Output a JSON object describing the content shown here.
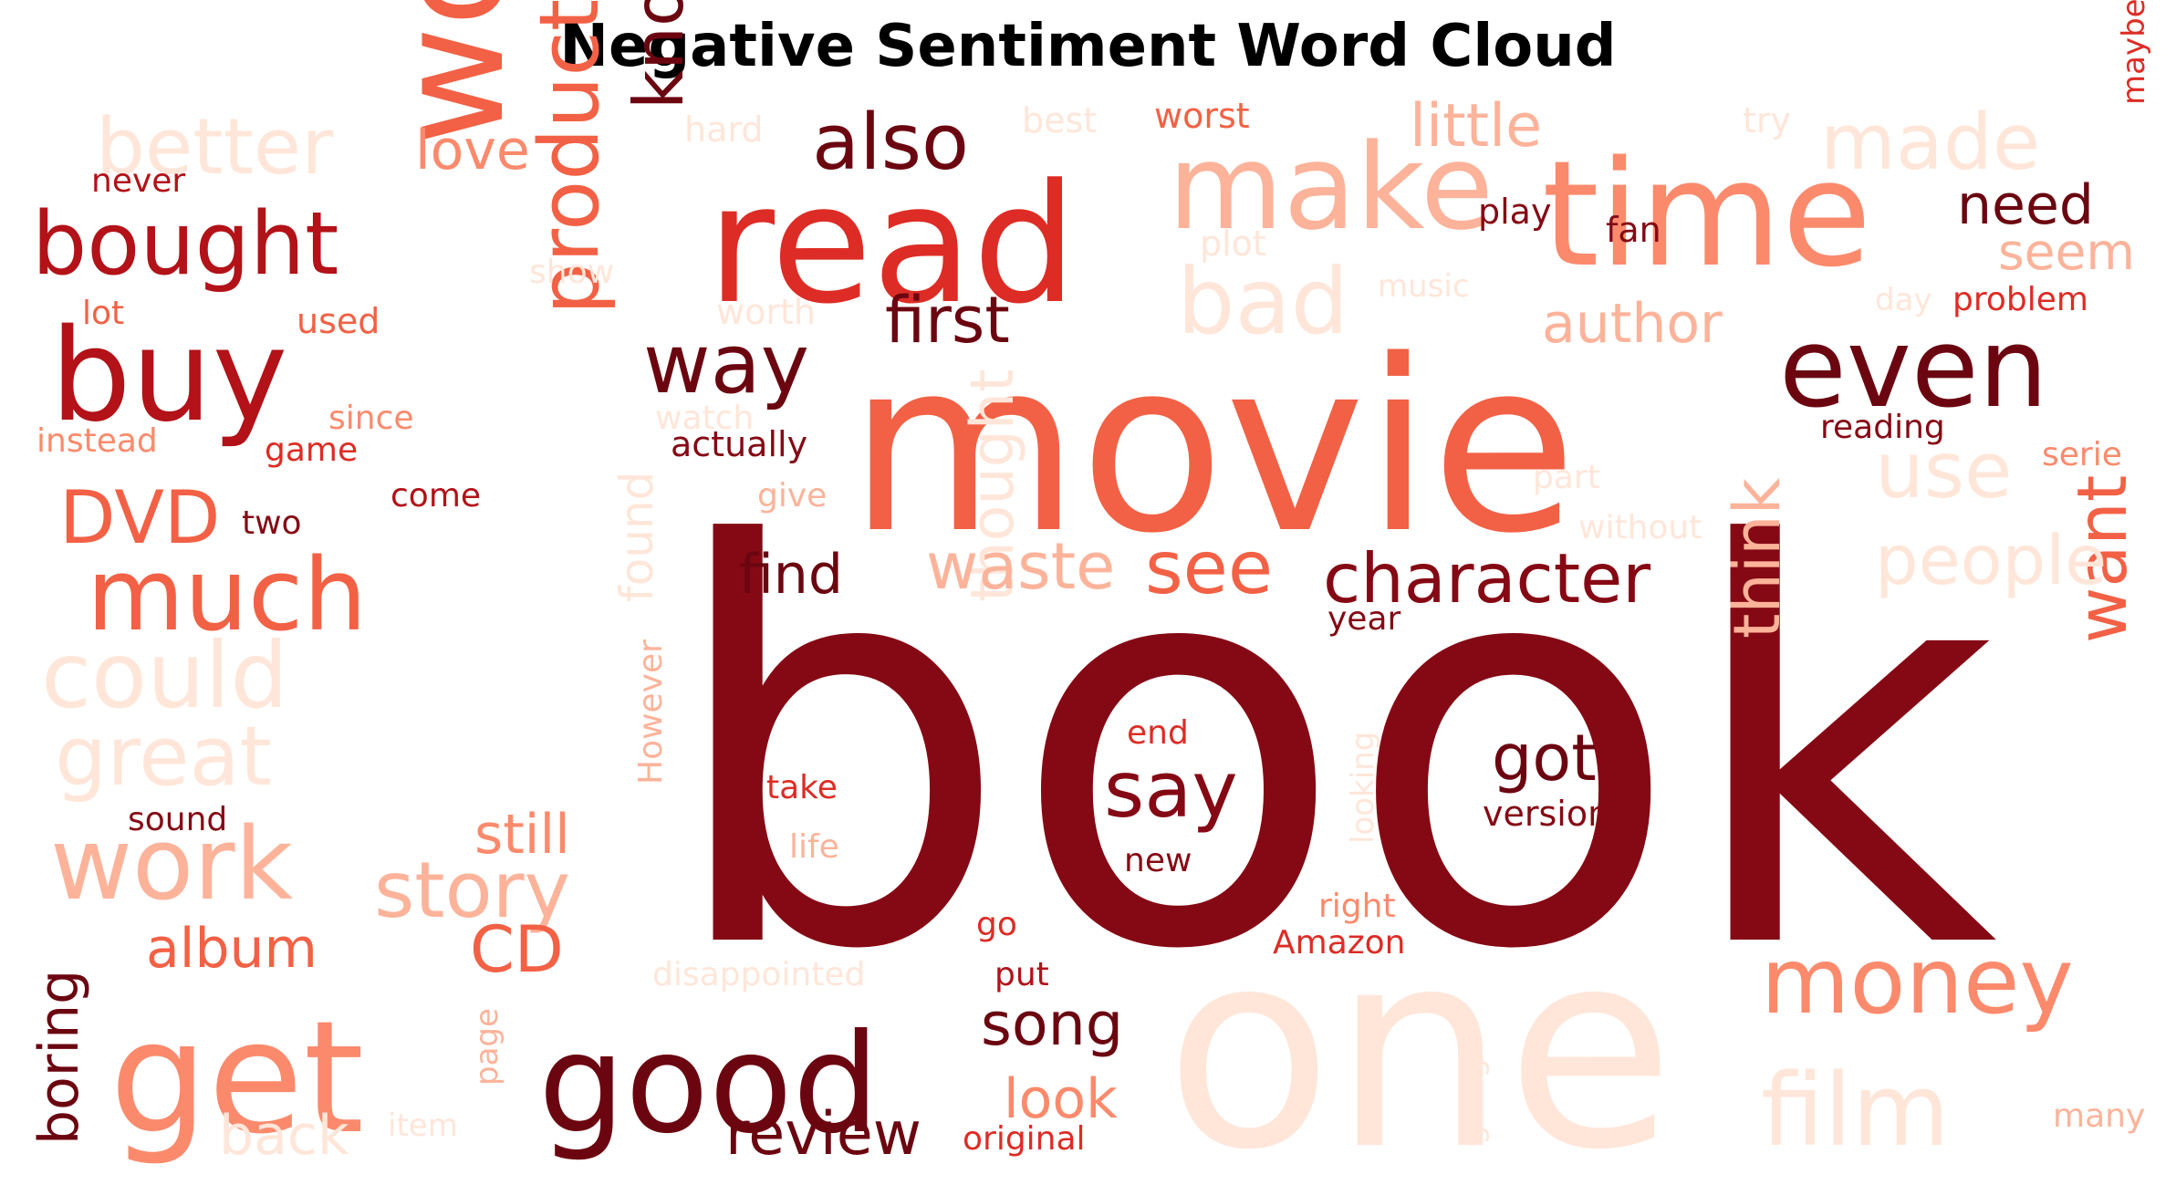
{
  "title": "Negative Sentiment Word Cloud",
  "palette": {
    "c0": "#FFE6D9",
    "c1": "#FCB39A",
    "c2": "#FB8A6C",
    "c3": "#F26145",
    "c4": "#DD2C25",
    "c5": "#B21218",
    "c6": "#850914",
    "c7": "#6B0610"
  },
  "words": [
    {
      "text": "book",
      "color": "c6"
    },
    {
      "text": "movie",
      "color": "c3"
    },
    {
      "text": "one",
      "color": "c0"
    },
    {
      "text": "would",
      "color": "c3"
    },
    {
      "text": "read",
      "color": "c4"
    },
    {
      "text": "time",
      "color": "c2"
    },
    {
      "text": "get",
      "color": "c2"
    },
    {
      "text": "good",
      "color": "c7"
    },
    {
      "text": "make",
      "color": "c1"
    },
    {
      "text": "buy",
      "color": "c5"
    },
    {
      "text": "even",
      "color": "c7"
    },
    {
      "text": "bad",
      "color": "c0"
    },
    {
      "text": "film",
      "color": "c0"
    },
    {
      "text": "money",
      "color": "c2"
    },
    {
      "text": "product",
      "color": "c3"
    },
    {
      "text": "much",
      "color": "c3"
    },
    {
      "text": "work",
      "color": "c1"
    },
    {
      "text": "could",
      "color": "c0"
    },
    {
      "text": "know",
      "color": "c7"
    },
    {
      "text": "bought",
      "color": "c5"
    },
    {
      "text": "also",
      "color": "c7"
    },
    {
      "text": "better",
      "color": "c0"
    },
    {
      "text": "made",
      "color": "c0"
    },
    {
      "text": "way",
      "color": "c7"
    },
    {
      "text": "great",
      "color": "c0"
    },
    {
      "text": "say",
      "color": "c6"
    },
    {
      "text": "see",
      "color": "c3"
    },
    {
      "text": "character",
      "color": "c6"
    },
    {
      "text": "think",
      "color": "c1"
    },
    {
      "text": "want",
      "color": "c3"
    },
    {
      "text": "story",
      "color": "c1"
    },
    {
      "text": "use",
      "color": "c0"
    },
    {
      "text": "people",
      "color": "c0"
    },
    {
      "text": "got",
      "color": "c7"
    },
    {
      "text": "thought",
      "color": "c0"
    },
    {
      "text": "waste",
      "color": "c1"
    },
    {
      "text": "DVD",
      "color": "c3"
    },
    {
      "text": "little",
      "color": "c1"
    },
    {
      "text": "first",
      "color": "c7"
    },
    {
      "text": "love",
      "color": "c2"
    },
    {
      "text": "CD",
      "color": "c3"
    },
    {
      "text": "review",
      "color": "c7"
    },
    {
      "text": "look",
      "color": "c2"
    },
    {
      "text": "song",
      "color": "c7"
    },
    {
      "text": "find",
      "color": "c7"
    },
    {
      "text": "author",
      "color": "c1"
    },
    {
      "text": "still",
      "color": "c2"
    },
    {
      "text": "album",
      "color": "c3"
    },
    {
      "text": "boring",
      "color": "c7"
    },
    {
      "text": "seem",
      "color": "c1"
    },
    {
      "text": "need",
      "color": "c7"
    },
    {
      "text": "found",
      "color": "c0"
    },
    {
      "text": "back",
      "color": "c0"
    },
    {
      "text": "worst",
      "color": "c3"
    },
    {
      "text": "hard",
      "color": "c0"
    },
    {
      "text": "best",
      "color": "c0"
    },
    {
      "text": "try",
      "color": "c0"
    },
    {
      "text": "maybe",
      "color": "c4"
    },
    {
      "text": "never",
      "color": "c5"
    },
    {
      "text": "play",
      "color": "c6"
    },
    {
      "text": "fan",
      "color": "c6"
    },
    {
      "text": "plot",
      "color": "c0"
    },
    {
      "text": "show",
      "color": "c0"
    },
    {
      "text": "lot",
      "color": "c3"
    },
    {
      "text": "used",
      "color": "c3"
    },
    {
      "text": "worth",
      "color": "c0"
    },
    {
      "text": "music",
      "color": "c0"
    },
    {
      "text": "day",
      "color": "c0"
    },
    {
      "text": "problem",
      "color": "c4"
    },
    {
      "text": "since",
      "color": "c2"
    },
    {
      "text": "watch",
      "color": "c0"
    },
    {
      "text": "reading",
      "color": "c6"
    },
    {
      "text": "instead",
      "color": "c2"
    },
    {
      "text": "game",
      "color": "c4"
    },
    {
      "text": "actually",
      "color": "c6"
    },
    {
      "text": "come",
      "color": "c5"
    },
    {
      "text": "give",
      "color": "c1"
    },
    {
      "text": "part",
      "color": "c0"
    },
    {
      "text": "serie",
      "color": "c2"
    },
    {
      "text": "two",
      "color": "c6"
    },
    {
      "text": "without",
      "color": "c0"
    },
    {
      "text": "year",
      "color": "c6"
    },
    {
      "text": "However",
      "color": "c1"
    },
    {
      "text": "end",
      "color": "c4"
    },
    {
      "text": "looking",
      "color": "c0"
    },
    {
      "text": "take",
      "color": "c4"
    },
    {
      "text": "version",
      "color": "c6"
    },
    {
      "text": "sound",
      "color": "c6"
    },
    {
      "text": "life",
      "color": "c1"
    },
    {
      "text": "new",
      "color": "c6"
    },
    {
      "text": "right",
      "color": "c2"
    },
    {
      "text": "go",
      "color": "c4"
    },
    {
      "text": "Amazon",
      "color": "c4"
    },
    {
      "text": "disappointed",
      "color": "c0"
    },
    {
      "text": "put",
      "color": "c5"
    },
    {
      "text": "page",
      "color": "c1"
    },
    {
      "text": "going",
      "color": "c0"
    },
    {
      "text": "item",
      "color": "c0"
    },
    {
      "text": "original",
      "color": "c4"
    },
    {
      "text": "many",
      "color": "c1"
    }
  ]
}
